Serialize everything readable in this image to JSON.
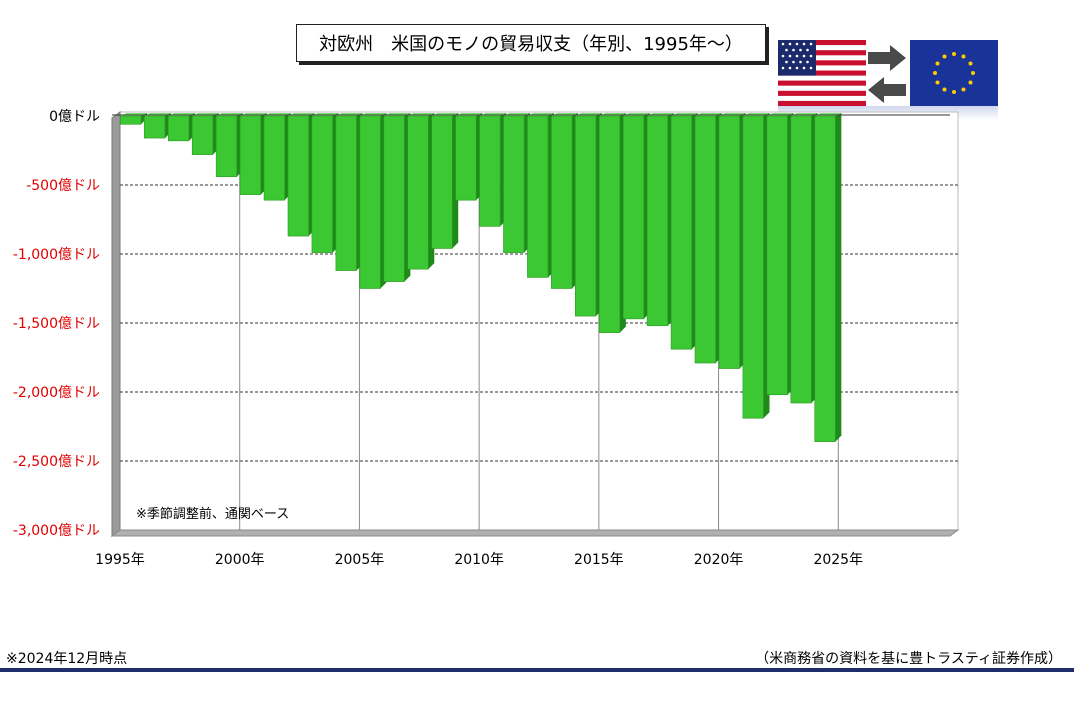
{
  "title": "対欧州　米国のモノの貿易収支（年別、1995年〜）",
  "note": "※季節調整前、通関ベース",
  "footer": {
    "date_note": "※2024年12月時点",
    "source": "（米商務省の資料を基に豊トラスティ証券作成）"
  },
  "flags": {
    "us": "us-flag-icon",
    "eu": "eu-flag-icon",
    "arrows": "exchange-arrows-icon"
  },
  "colors": {
    "bar": "#3cc832",
    "bar_side": "#1f8a1a",
    "bar_top": "#79e06e",
    "neg_label": "#e00000",
    "footer_line": "#1f2d6a"
  },
  "chart_data": {
    "type": "bar",
    "title": "対欧州　米国のモノの貿易収支（年別、1995年〜）",
    "xlabel": "",
    "ylabel": "",
    "ylim": [
      -3000,
      0
    ],
    "xlim": [
      1995,
      2030
    ],
    "grid": true,
    "y_ticks": [
      {
        "value": 0,
        "label": "0億ドル"
      },
      {
        "value": -500,
        "label": "-500億ドル"
      },
      {
        "value": -1000,
        "label": "-1,000億ドル"
      },
      {
        "value": -1500,
        "label": "-1,500億ドル"
      },
      {
        "value": -2000,
        "label": "-2,000億ドル"
      },
      {
        "value": -2500,
        "label": "-2,500億ドル"
      },
      {
        "value": -3000,
        "label": "-3,000億ドル"
      }
    ],
    "x_ticks": [
      {
        "value": 1995,
        "label": "1995年"
      },
      {
        "value": 2000,
        "label": "2000年"
      },
      {
        "value": 2005,
        "label": "2005年"
      },
      {
        "value": 2010,
        "label": "2010年"
      },
      {
        "value": 2015,
        "label": "2015年"
      },
      {
        "value": 2020,
        "label": "2020年"
      },
      {
        "value": 2025,
        "label": "2025年"
      }
    ],
    "categories": [
      1995,
      1996,
      1997,
      1998,
      1999,
      2000,
      2001,
      2002,
      2003,
      2004,
      2005,
      2006,
      2007,
      2008,
      2009,
      2010,
      2011,
      2012,
      2013,
      2014,
      2015,
      2016,
      2017,
      2018,
      2019,
      2020,
      2021,
      2022,
      2023,
      2024
    ],
    "values": [
      -60,
      -160,
      -180,
      -280,
      -440,
      -570,
      -610,
      -870,
      -990,
      -1120,
      -1250,
      -1200,
      -1110,
      -960,
      -610,
      -800,
      -990,
      -1170,
      -1250,
      -1450,
      -1570,
      -1470,
      -1520,
      -1690,
      -1790,
      -1830,
      -2190,
      -2020,
      -2080,
      -2360
    ]
  }
}
